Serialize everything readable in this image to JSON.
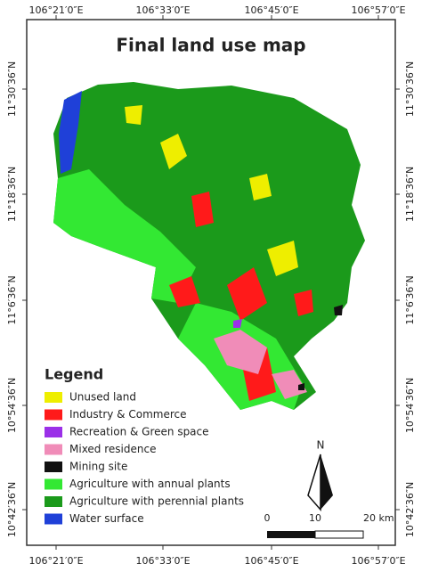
{
  "title": "Final land use map",
  "top_labels": [
    "106°21′0″E",
    "106°33′0″E",
    "106°45′0″E",
    "106°57′0″E"
  ],
  "bottom_labels": [
    "106°21′0″E",
    "106°33′0″E",
    "106°45′0″E",
    "106°57′0″E"
  ],
  "left_labels": [
    "11°30′36″N",
    "11°18′36″N",
    "11°6′36″N",
    "10°54′36″N",
    "10°42′36″N"
  ],
  "right_labels": [
    "11°30′36″N",
    "11°18′36″N",
    "11°6′36″N",
    "10°54′36″N",
    "10°42′36″N"
  ],
  "legend": {
    "title": "Legend",
    "items": [
      {
        "label": "Unused land",
        "color": "#eeee00"
      },
      {
        "label": "Industry & Commerce",
        "color": "#ff1a1a"
      },
      {
        "label": "Recreation & Green space",
        "color": "#9b30e8"
      },
      {
        "label": "Mixed residence",
        "color": "#f08cb8"
      },
      {
        "label": "Mining site",
        "color": "#111111"
      },
      {
        "label": "Agriculture with annual plants",
        "color": "#33e833"
      },
      {
        "label": "Agriculture with perennial plants",
        "color": "#1b9a1b"
      },
      {
        "label": "Water surface",
        "color": "#1f40d8"
      }
    ]
  },
  "north": "N",
  "scale": [
    "0",
    "10",
    "20 km"
  ]
}
